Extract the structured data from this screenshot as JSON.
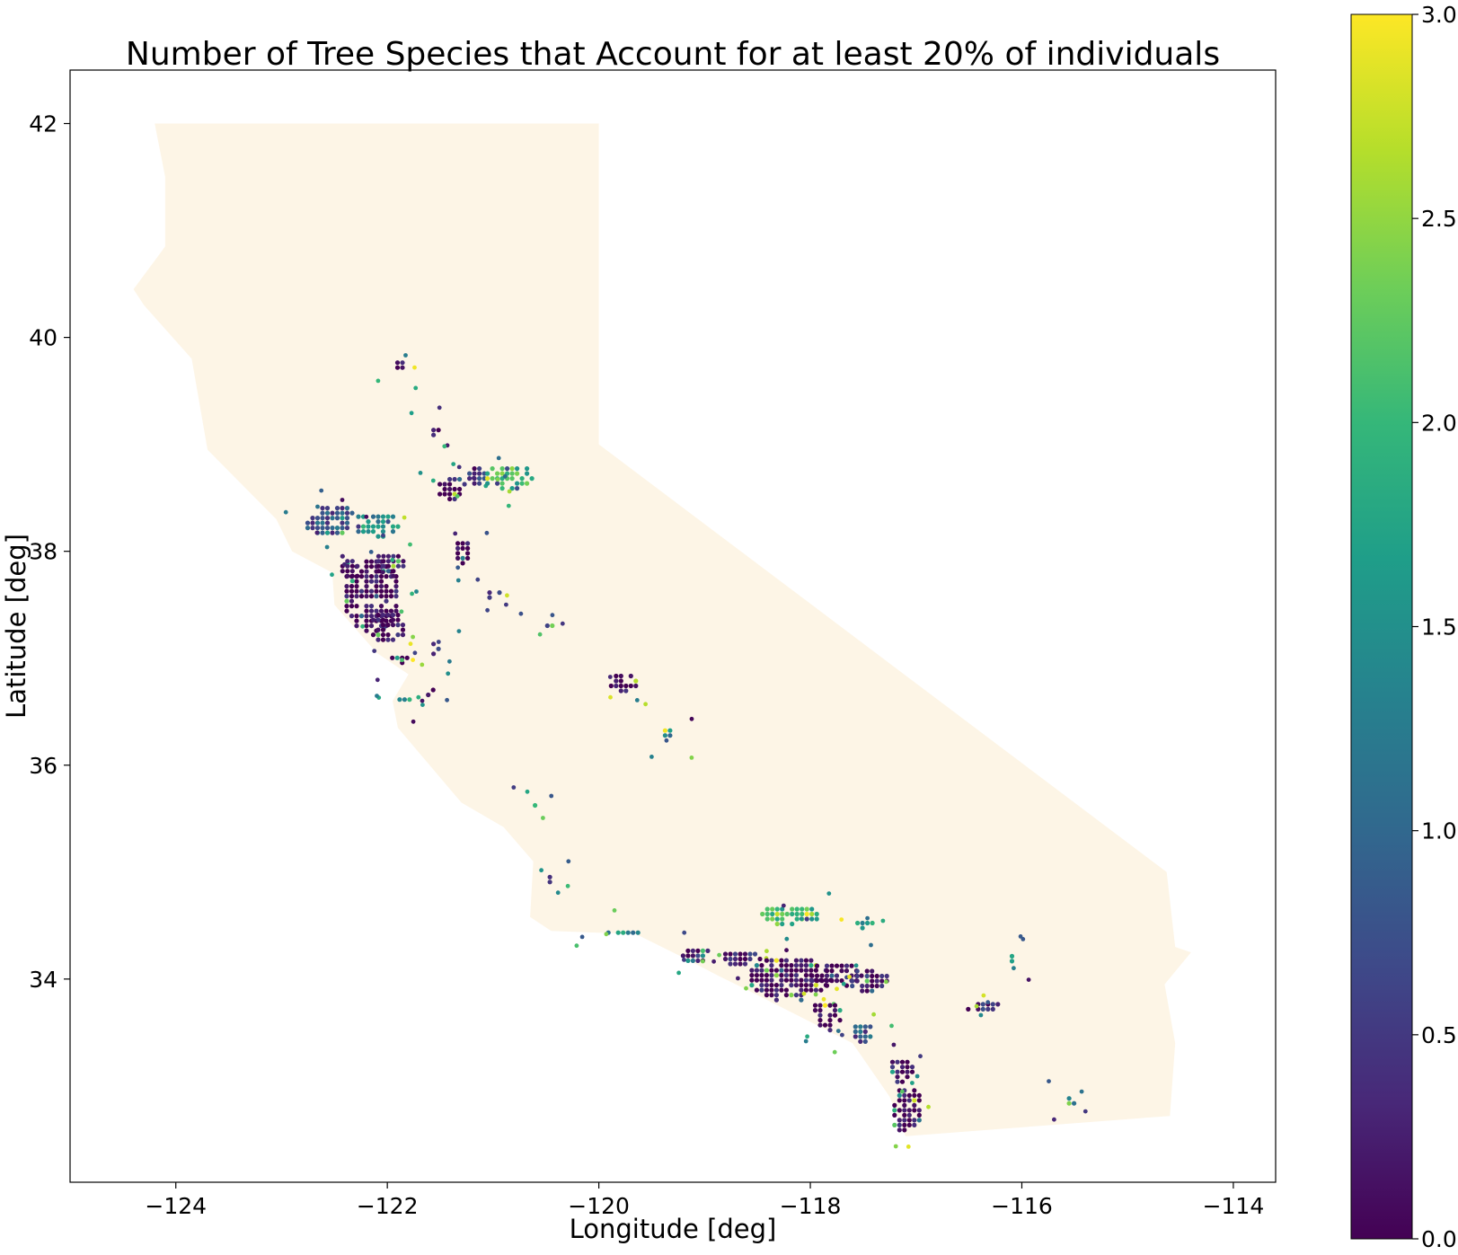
{
  "chart_data": {
    "type": "map",
    "title": "Number of Tree Species that Account for at least 20% of individuals",
    "xlabel": "Longitude [deg]",
    "ylabel": "Latitude [deg]",
    "xlim": [
      -125.0,
      -113.6
    ],
    "ylim": [
      32.1,
      42.5
    ],
    "x_ticks": [
      -124,
      -122,
      -120,
      -118,
      -116,
      -114
    ],
    "x_tick_labels": [
      "−124",
      "−122",
      "−120",
      "−118",
      "−116",
      "−114"
    ],
    "y_ticks": [
      34,
      36,
      38,
      40,
      42
    ],
    "y_tick_labels": [
      "34",
      "36",
      "38",
      "40",
      "42"
    ],
    "background_region": {
      "name": "California",
      "color": "#fdf5e6",
      "outline_lonlat": [
        [
          -124.2,
          42.0
        ],
        [
          -120.0,
          42.0
        ],
        [
          -120.0,
          39.0
        ],
        [
          -114.63,
          35.0
        ],
        [
          -114.55,
          34.3
        ],
        [
          -114.4,
          34.25
        ],
        [
          -114.65,
          33.95
        ],
        [
          -114.55,
          33.4
        ],
        [
          -114.6,
          32.72
        ],
        [
          -117.1,
          32.53
        ],
        [
          -117.25,
          32.9
        ],
        [
          -117.6,
          33.4
        ],
        [
          -118.3,
          33.75
        ],
        [
          -118.6,
          33.9
        ],
        [
          -118.85,
          34.02
        ],
        [
          -119.2,
          34.2
        ],
        [
          -119.65,
          34.42
        ],
        [
          -120.45,
          34.45
        ],
        [
          -120.65,
          34.58
        ],
        [
          -120.62,
          35.1
        ],
        [
          -120.9,
          35.42
        ],
        [
          -121.3,
          35.65
        ],
        [
          -121.9,
          36.35
        ],
        [
          -121.95,
          36.6
        ],
        [
          -121.8,
          36.85
        ],
        [
          -122.1,
          37.05
        ],
        [
          -122.5,
          37.5
        ],
        [
          -122.52,
          37.8
        ],
        [
          -122.9,
          38.0
        ],
        [
          -123.05,
          38.3
        ],
        [
          -123.7,
          38.95
        ],
        [
          -123.85,
          39.8
        ],
        [
          -124.3,
          40.3
        ],
        [
          -124.4,
          40.45
        ],
        [
          -124.1,
          40.85
        ],
        [
          -124.1,
          41.5
        ],
        [
          -124.2,
          42.0
        ]
      ]
    },
    "colorbar": {
      "colormap": "viridis",
      "range": [
        0.0,
        3.0
      ],
      "ticks": [
        0.0,
        0.5,
        1.0,
        1.5,
        2.0,
        2.5,
        3.0
      ],
      "tick_labels": [
        "0.0",
        "0.5",
        "1.0",
        "1.5",
        "2.0",
        "2.5",
        "3.0"
      ],
      "stops": [
        "#440154",
        "#482878",
        "#3e4989",
        "#31688e",
        "#26828e",
        "#1f9e89",
        "#35b779",
        "#6ece58",
        "#b5de2b",
        "#fde725"
      ]
    },
    "point_clusters_note": "hexbin cells, approximate",
    "clusters": [
      {
        "lon": -122.15,
        "lat": 37.6,
        "rx": 0.28,
        "ry": 0.35,
        "value": 0.0
      },
      {
        "lon": -122.0,
        "lat": 37.3,
        "rx": 0.18,
        "ry": 0.15,
        "value": 0.0
      },
      {
        "lon": -122.35,
        "lat": 37.85,
        "rx": 0.12,
        "ry": 0.15,
        "value": 0.0
      },
      {
        "lon": -121.98,
        "lat": 37.88,
        "rx": 0.15,
        "ry": 0.12,
        "value": 0.0
      },
      {
        "lon": -122.55,
        "lat": 38.3,
        "rx": 0.25,
        "ry": 0.15,
        "value": 0.8
      },
      {
        "lon": -122.1,
        "lat": 38.25,
        "rx": 0.22,
        "ry": 0.12,
        "value": 1.5
      },
      {
        "lon": -121.4,
        "lat": 38.6,
        "rx": 0.15,
        "ry": 0.12,
        "value": 0.0
      },
      {
        "lon": -121.15,
        "lat": 38.72,
        "rx": 0.12,
        "ry": 0.1,
        "value": 0.4
      },
      {
        "lon": -120.85,
        "lat": 38.7,
        "rx": 0.25,
        "ry": 0.12,
        "value": 2.0
      },
      {
        "lon": -121.3,
        "lat": 38.0,
        "rx": 0.08,
        "ry": 0.12,
        "value": 0.0
      },
      {
        "lon": -121.88,
        "lat": 39.75,
        "rx": 0.07,
        "ry": 0.06,
        "value": 0.0
      },
      {
        "lon": -121.55,
        "lat": 39.13,
        "rx": 0.06,
        "ry": 0.05,
        "value": 0.0
      },
      {
        "lon": -121.9,
        "lat": 37.0,
        "rx": 0.1,
        "ry": 0.05,
        "value": 0.0
      },
      {
        "lon": -121.6,
        "lat": 36.7,
        "rx": 0.06,
        "ry": 0.05,
        "value": 0.0
      },
      {
        "lon": -121.85,
        "lat": 36.6,
        "rx": 0.08,
        "ry": 0.06,
        "value": 1.6
      },
      {
        "lon": -121.55,
        "lat": 37.1,
        "rx": 0.06,
        "ry": 0.08,
        "value": 0.4
      },
      {
        "lon": -119.78,
        "lat": 36.78,
        "rx": 0.15,
        "ry": 0.1,
        "value": 0.0
      },
      {
        "lon": -119.35,
        "lat": 36.3,
        "rx": 0.07,
        "ry": 0.07,
        "value": 1.3
      },
      {
        "lon": -120.5,
        "lat": 37.3,
        "rx": 0.08,
        "ry": 0.05,
        "value": 0.4
      },
      {
        "lon": -121.0,
        "lat": 37.6,
        "rx": 0.08,
        "ry": 0.06,
        "value": 0.6
      },
      {
        "lon": -120.6,
        "lat": 35.63,
        "rx": 0.05,
        "ry": 0.04,
        "value": 1.8
      },
      {
        "lon": -120.45,
        "lat": 34.95,
        "rx": 0.06,
        "ry": 0.05,
        "value": 0.0
      },
      {
        "lon": -119.8,
        "lat": 34.44,
        "rx": 0.25,
        "ry": 0.04,
        "value": 1.4
      },
      {
        "lon": -119.1,
        "lat": 34.23,
        "rx": 0.15,
        "ry": 0.08,
        "value": 0.0
      },
      {
        "lon": -118.65,
        "lat": 34.2,
        "rx": 0.2,
        "ry": 0.08,
        "value": 0.2
      },
      {
        "lon": -118.2,
        "lat": 34.0,
        "rx": 0.4,
        "ry": 0.22,
        "value": 0.0
      },
      {
        "lon": -117.75,
        "lat": 34.05,
        "rx": 0.28,
        "ry": 0.12,
        "value": 0.0
      },
      {
        "lon": -117.45,
        "lat": 34.0,
        "rx": 0.2,
        "ry": 0.12,
        "value": 0.3
      },
      {
        "lon": -117.85,
        "lat": 33.65,
        "rx": 0.15,
        "ry": 0.15,
        "value": 0.0
      },
      {
        "lon": -117.5,
        "lat": 33.5,
        "rx": 0.12,
        "ry": 0.1,
        "value": 0.8
      },
      {
        "lon": -118.2,
        "lat": 34.6,
        "rx": 0.3,
        "ry": 0.1,
        "value": 2.0
      },
      {
        "lon": -117.5,
        "lat": 34.52,
        "rx": 0.1,
        "ry": 0.05,
        "value": 1.7
      },
      {
        "lon": -117.1,
        "lat": 32.8,
        "rx": 0.15,
        "ry": 0.25,
        "value": 0.0
      },
      {
        "lon": -117.15,
        "lat": 33.15,
        "rx": 0.12,
        "ry": 0.12,
        "value": 0.1
      },
      {
        "lon": -116.4,
        "lat": 33.75,
        "rx": 0.2,
        "ry": 0.06,
        "value": 0.3
      },
      {
        "lon": -116.1,
        "lat": 34.2,
        "rx": 0.04,
        "ry": 0.06,
        "value": 2.1
      },
      {
        "lon": -115.55,
        "lat": 32.85,
        "rx": 0.05,
        "ry": 0.08,
        "value": 1.6
      }
    ]
  }
}
